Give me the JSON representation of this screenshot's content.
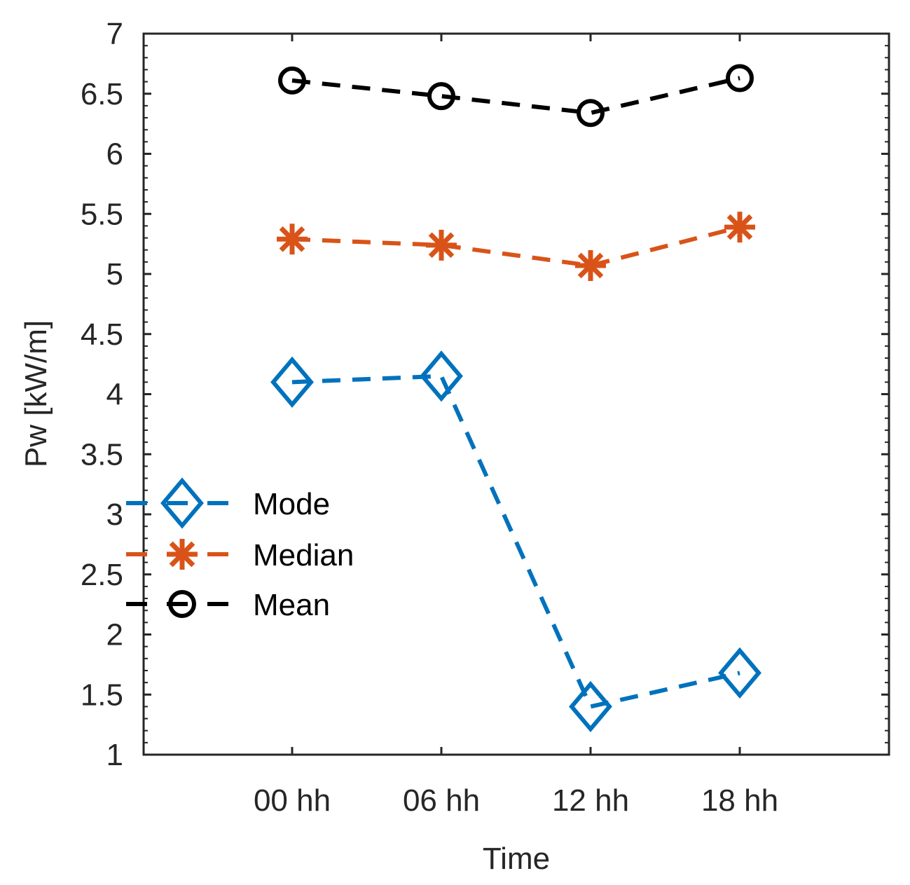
{
  "chart_data": {
    "type": "line",
    "title": "",
    "xlabel": "Time",
    "ylabel": "Pw [kW/m]",
    "categories": [
      "00 hh",
      "06 hh",
      "12 hh",
      "18 hh"
    ],
    "ylim": [
      1,
      7
    ],
    "yticks": [
      "1",
      "1.5",
      "2",
      "2.5",
      "3",
      "3.5",
      "4",
      "4.5",
      "5",
      "5.5",
      "6",
      "6.5",
      "7"
    ],
    "grid": false,
    "legend_position": "middle-left",
    "series": [
      {
        "name": "Mode",
        "marker": "diamond",
        "color": "#0072BD",
        "values": [
          4.1,
          4.15,
          1.4,
          1.68
        ]
      },
      {
        "name": "Median",
        "marker": "asterisk",
        "color": "#D95319",
        "values": [
          5.29,
          5.24,
          5.07,
          5.39
        ]
      },
      {
        "name": "Mean",
        "marker": "circle",
        "color": "#000000",
        "values": [
          6.61,
          6.48,
          6.34,
          6.63
        ]
      }
    ]
  }
}
